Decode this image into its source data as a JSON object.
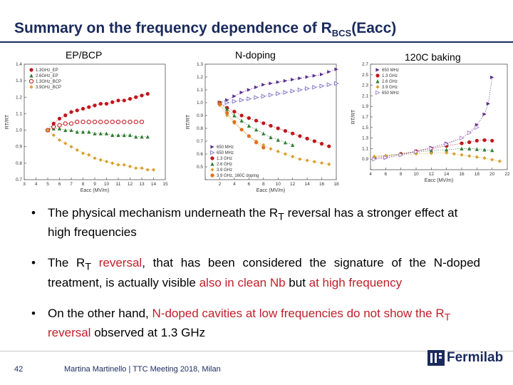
{
  "slide": {
    "title_main": "Summary on the frequency dependence of R",
    "title_sub": "BCS",
    "title_tail": "(Eacc)",
    "panel_labels": [
      "EP/BCP",
      "N-doping",
      "120C baking"
    ],
    "bullets": [
      [
        {
          "t": "The physical mechanism underneath the R",
          "c": ""
        },
        {
          "t": "T",
          "c": "sub"
        },
        {
          "t": " reversal has a stronger effect at high frequencies",
          "c": ""
        }
      ],
      [
        {
          "t": "The R",
          "c": ""
        },
        {
          "t": "T",
          "c": "sub"
        },
        {
          "t": " reversal",
          "c": "red"
        },
        {
          "t": ", that has been considered the signature of the N-doped treatment, is actually visible ",
          "c": ""
        },
        {
          "t": "also in clean Nb",
          "c": "red"
        },
        {
          "t": " but ",
          "c": ""
        },
        {
          "t": "at high frequency",
          "c": "red"
        }
      ],
      [
        {
          "t": "On the other hand, ",
          "c": ""
        },
        {
          "t": "N-doped cavities at low frequencies do not show the R",
          "c": "red"
        },
        {
          "t": "T",
          "c": "redsub"
        },
        {
          "t": " reversal",
          "c": "red"
        },
        {
          "t": " observed at 1.3 GHz",
          "c": ""
        }
      ]
    ],
    "bullet_symbol": "•",
    "page_number": "42",
    "footer": "Martina Martinello | TTC Meeting 2018, Milan",
    "logo_text": "Fermilab"
  },
  "chart_data": [
    {
      "type": "line",
      "title": "EP/BCP",
      "xlabel": "Eacc (MV/m)",
      "ylabel": "RT/RT",
      "xlim": [
        3,
        15
      ],
      "ylim": [
        0.7,
        1.4
      ],
      "xticks": [
        "3",
        "4",
        "5",
        "6",
        "7",
        "8",
        "9",
        "10",
        "11",
        "12",
        "13",
        "14",
        "15"
      ],
      "yticks": [
        "0.7",
        "0.8",
        "0.9",
        "1.0",
        "1.1",
        "1.2",
        "1.3",
        "1.4"
      ],
      "legend_position": "top-left",
      "series": [
        {
          "name": "1.3GHz_EP",
          "color": "#c0161c",
          "marker": "circle-filled",
          "x": [
            5,
            5.5,
            6,
            6.5,
            7,
            7.5,
            8,
            8.5,
            9,
            9.5,
            10,
            10.5,
            11,
            11.5,
            12,
            12.5,
            13,
            13.5
          ],
          "y": [
            1.0,
            1.04,
            1.07,
            1.09,
            1.11,
            1.12,
            1.13,
            1.14,
            1.15,
            1.16,
            1.16,
            1.17,
            1.18,
            1.18,
            1.19,
            1.2,
            1.21,
            1.22
          ]
        },
        {
          "name": "2.6GHz_EP",
          "color": "#2e7d32",
          "marker": "triangle",
          "x": [
            5,
            5.5,
            6,
            6.5,
            7,
            7.5,
            8,
            8.5,
            9,
            9.5,
            10,
            10.5,
            11,
            11.5,
            12,
            12.5,
            13,
            13.5
          ],
          "y": [
            1.0,
            1.01,
            1.01,
            1.0,
            1.0,
            0.99,
            0.99,
            0.99,
            0.98,
            0.98,
            0.98,
            0.97,
            0.97,
            0.97,
            0.97,
            0.96,
            0.96,
            0.96
          ]
        },
        {
          "name": "1.3GHz_BCP",
          "color": "#c0161c",
          "marker": "circle-open",
          "x": [
            5,
            5.5,
            6,
            6.5,
            7,
            7.5,
            8,
            8.5,
            9,
            9.5,
            10,
            10.5,
            11,
            11.5,
            12,
            12.5,
            13
          ],
          "y": [
            1.0,
            1.02,
            1.03,
            1.04,
            1.04,
            1.05,
            1.05,
            1.05,
            1.05,
            1.05,
            1.05,
            1.05,
            1.05,
            1.05,
            1.05,
            1.05,
            1.05
          ]
        },
        {
          "name": "3.9GHz_BCP",
          "color": "#d9a030",
          "marker": "diamond",
          "x": [
            5,
            5.5,
            6,
            6.5,
            7,
            7.5,
            8,
            8.5,
            9,
            9.5,
            10,
            10.5,
            11,
            11.5,
            12,
            12.5,
            13,
            13.5,
            14
          ],
          "y": [
            1.0,
            0.97,
            0.94,
            0.92,
            0.9,
            0.88,
            0.86,
            0.85,
            0.83,
            0.82,
            0.81,
            0.8,
            0.79,
            0.79,
            0.78,
            0.77,
            0.77,
            0.76,
            0.76
          ]
        }
      ]
    },
    {
      "type": "line",
      "title": "N-doping",
      "xlabel": "Eacc (MV/m)",
      "ylabel": "RT/RT",
      "xlim": [
        0,
        18
      ],
      "ylim": [
        0.4,
        1.3
      ],
      "xticks": [
        "",
        "2",
        "4",
        "6",
        "8",
        "10",
        "12",
        "14",
        "16",
        "18"
      ],
      "yticks": [
        "",
        "0.5",
        "0.6",
        "0.7",
        "0.8",
        "0.9",
        "1.0",
        "1.1",
        "1.2",
        "1.3"
      ],
      "legend_position": "bottom-left",
      "series": [
        {
          "name": "650 MHz",
          "color": "#5b2d8c",
          "marker": "triangle-right",
          "x": [
            2,
            3,
            4,
            5,
            6,
            7,
            8,
            9,
            10,
            11,
            12,
            13,
            14,
            15,
            16,
            17,
            18
          ],
          "y": [
            1.0,
            1.02,
            1.05,
            1.08,
            1.1,
            1.12,
            1.14,
            1.15,
            1.16,
            1.17,
            1.18,
            1.19,
            1.2,
            1.21,
            1.22,
            1.24,
            1.26
          ]
        },
        {
          "name": "650 MHz",
          "color": "#8a7cc8",
          "marker": "triangle-right-open",
          "x": [
            2,
            3,
            4,
            5,
            6,
            7,
            8,
            9,
            10,
            11,
            12,
            13,
            14,
            15,
            16,
            17,
            18
          ],
          "y": [
            1.0,
            1.0,
            1.01,
            1.02,
            1.03,
            1.04,
            1.05,
            1.06,
            1.07,
            1.08,
            1.09,
            1.1,
            1.11,
            1.12,
            1.13,
            1.14,
            1.15
          ]
        },
        {
          "name": "1.3 GHz",
          "color": "#c0161c",
          "marker": "circle-filled",
          "x": [
            2,
            3,
            4,
            5,
            6,
            7,
            8,
            9,
            10,
            11,
            12,
            13,
            14,
            15,
            16,
            17
          ],
          "y": [
            1.0,
            0.96,
            0.93,
            0.9,
            0.88,
            0.86,
            0.84,
            0.82,
            0.8,
            0.78,
            0.76,
            0.74,
            0.72,
            0.7,
            0.68,
            0.66
          ]
        },
        {
          "name": "2.6 GHz",
          "color": "#2e7d32",
          "marker": "triangle",
          "x": [
            2,
            3,
            4,
            5,
            6,
            7,
            8,
            9,
            10,
            11,
            12
          ],
          "y": [
            1.0,
            0.95,
            0.9,
            0.86,
            0.82,
            0.79,
            0.76,
            0.73,
            0.71,
            0.69,
            0.67
          ]
        },
        {
          "name": "3.9 GHz",
          "color": "#d9a030",
          "marker": "diamond",
          "x": [
            2,
            3,
            4,
            5,
            6,
            7,
            8,
            9,
            10,
            11,
            12,
            13,
            14,
            15,
            16,
            17
          ],
          "y": [
            0.98,
            0.9,
            0.84,
            0.79,
            0.74,
            0.7,
            0.67,
            0.64,
            0.62,
            0.6,
            0.58,
            0.56,
            0.55,
            0.54,
            0.53,
            0.52
          ]
        },
        {
          "name": "3.9 GHz, 160C doping",
          "color": "#e07020",
          "marker": "circle-filled",
          "x": [
            2,
            3,
            4,
            5,
            6,
            7,
            8
          ],
          "y": [
            0.99,
            0.92,
            0.85,
            0.79,
            0.74,
            0.69,
            0.65
          ]
        }
      ]
    },
    {
      "type": "line",
      "title": "120C baking",
      "xlabel": "Eacc (MV/m)",
      "ylabel": "RT/RT",
      "xlim": [
        4,
        22
      ],
      "ylim": [
        0.7,
        2.7
      ],
      "xticks": [
        "4",
        "6",
        "8",
        "10",
        "12",
        "14",
        "16",
        "18",
        "20",
        "22"
      ],
      "yticks": [
        "",
        "0.9",
        "1.1",
        "1.3",
        "1.5",
        "1.7",
        "1.9",
        "2.1",
        "2.3",
        "2.5",
        "2.7"
      ],
      "legend_position": "top-left",
      "series": [
        {
          "name": "650 MHz",
          "color": "#5b2d8c",
          "marker": "triangle-right",
          "x": [
            4.5,
            6,
            8,
            10,
            12,
            14,
            16,
            17,
            18,
            19,
            19.5,
            20
          ],
          "y": [
            0.9,
            0.92,
            0.98,
            1.05,
            1.12,
            1.2,
            1.3,
            1.4,
            1.55,
            1.75,
            1.95,
            2.45
          ]
        },
        {
          "name": "1.3 GHz",
          "color": "#c0161c",
          "marker": "circle-filled",
          "x": [
            4.5,
            6,
            8,
            10,
            12,
            14,
            16,
            17,
            18,
            19,
            20
          ],
          "y": [
            0.92,
            0.95,
            1.0,
            1.05,
            1.1,
            1.15,
            1.2,
            1.22,
            1.25,
            1.26,
            1.25
          ]
        },
        {
          "name": "2.6 GHz",
          "color": "#2e7d32",
          "marker": "triangle",
          "x": [
            4.5,
            6,
            8,
            10,
            12,
            14,
            16,
            17,
            18,
            19,
            20
          ],
          "y": [
            0.95,
            0.97,
            1.0,
            1.03,
            1.06,
            1.08,
            1.1,
            1.1,
            1.09,
            1.08,
            1.07
          ]
        },
        {
          "name": "3.9 GHz",
          "color": "#d9a030",
          "marker": "diamond",
          "x": [
            4.5,
            6,
            8,
            10,
            12,
            14,
            15,
            16,
            17,
            18,
            19,
            20,
            21
          ],
          "y": [
            0.95,
            0.96,
            0.98,
            1.0,
            1.01,
            1.02,
            1.0,
            0.98,
            0.96,
            0.94,
            0.92,
            0.89,
            0.86
          ]
        },
        {
          "name": "650 MHz",
          "color": "#b48fd0",
          "marker": "triangle-right-open",
          "x": [
            4.5,
            6,
            8,
            10,
            12,
            14,
            16,
            17,
            18
          ],
          "y": [
            0.9,
            0.93,
            0.98,
            1.04,
            1.1,
            1.18,
            1.3,
            1.4,
            1.5
          ]
        }
      ]
    }
  ]
}
